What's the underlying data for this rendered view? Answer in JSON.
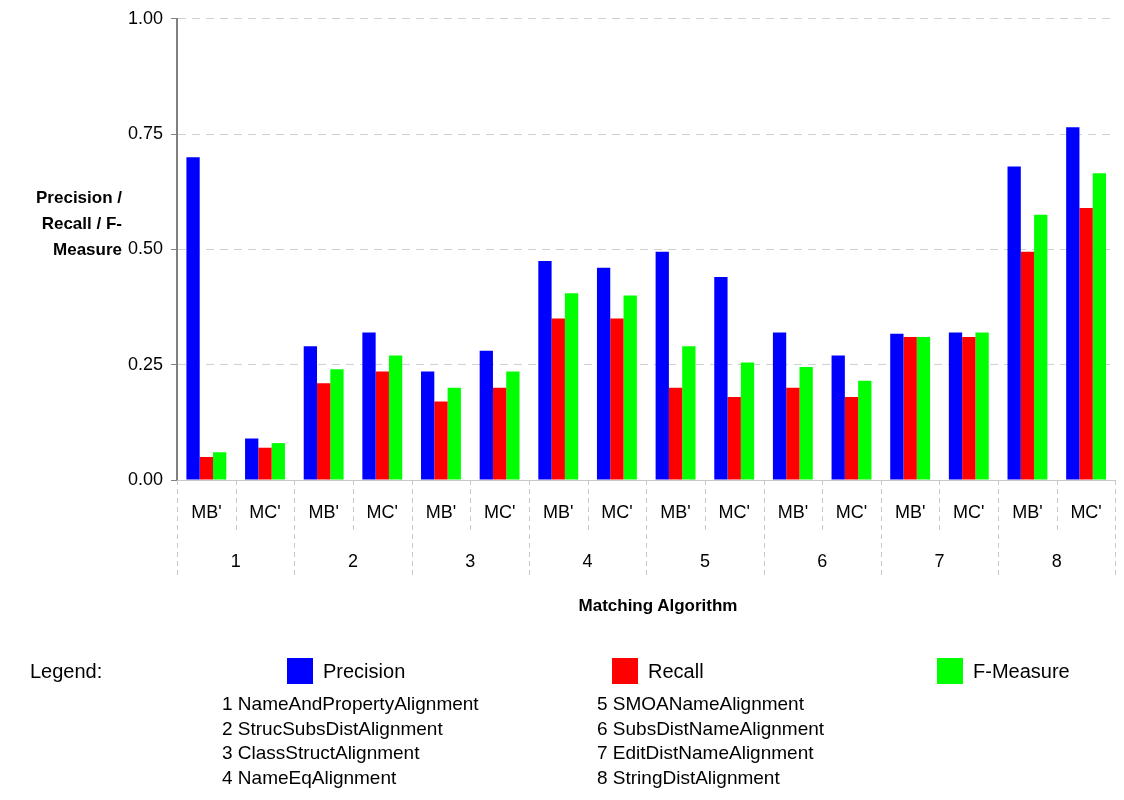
{
  "chart_data": {
    "type": "bar",
    "xlabel": "Matching Algorithm",
    "ylabel": "Precision / Recall / F-Measure",
    "categories": [
      "MB'",
      "MC'",
      "MB'",
      "MC'",
      "MB'",
      "MC'",
      "MB'",
      "MC'",
      "MB'",
      "MC'",
      "MB'",
      "MC'",
      "MB'",
      "MC'",
      "MB'",
      "MC'"
    ],
    "series": [
      {
        "name": "Precision",
        "color": "#0000ff",
        "values": [
          0.7,
          0.09,
          0.29,
          0.32,
          0.235,
          0.28,
          0.475,
          0.46,
          0.495,
          0.44,
          0.32,
          0.27,
          0.317,
          0.32,
          0.68,
          0.765
        ]
      },
      {
        "name": "Recall",
        "color": "#ff0000",
        "values": [
          0.05,
          0.07,
          0.21,
          0.235,
          0.17,
          0.2,
          0.35,
          0.35,
          0.2,
          0.18,
          0.2,
          0.18,
          0.31,
          0.31,
          0.495,
          0.59
        ]
      },
      {
        "name": "F-Measure",
        "color": "#00ff00",
        "values": [
          0.06,
          0.08,
          0.24,
          0.27,
          0.2,
          0.235,
          0.405,
          0.4,
          0.29,
          0.255,
          0.245,
          0.215,
          0.31,
          0.32,
          0.575,
          0.665
        ]
      }
    ],
    "ylim": [
      0,
      1
    ],
    "yticks": [
      {
        "value": 0,
        "label": "0.00"
      },
      {
        "value": 0.25,
        "label": "0.25"
      },
      {
        "value": 0.5,
        "label": "0.50"
      },
      {
        "value": 0.75,
        "label": "0.75"
      },
      {
        "value": 1,
        "label": "1.00"
      }
    ],
    "grid": "y",
    "legend": "bottom",
    "annotations": [
      "1",
      "2",
      "3",
      "4",
      "5",
      "6",
      "7",
      "8",
      "Legend:",
      "1 NameAndPropertyAlignment",
      "2 StrucSubsDistAlignment",
      "3 ClassStructAlignment",
      "4 NameEqAlignment",
      "5 SMOANameAlignment",
      "6 SubsDistNameAlignment",
      "7 EditDistNameAlignment",
      "8 StringDistAlignment"
    ]
  }
}
